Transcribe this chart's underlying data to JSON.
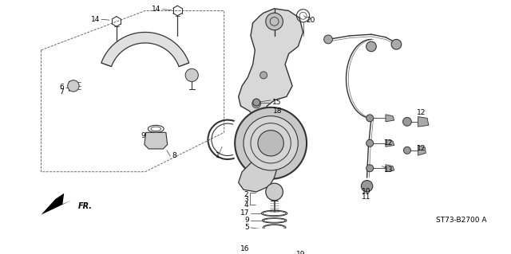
{
  "bg_color": "#ffffff",
  "line_color": "#333333",
  "label_color": "#000000",
  "diagram_code": "ST73-B2700 A",
  "fig_width": 6.4,
  "fig_height": 3.19,
  "dpi": 100
}
